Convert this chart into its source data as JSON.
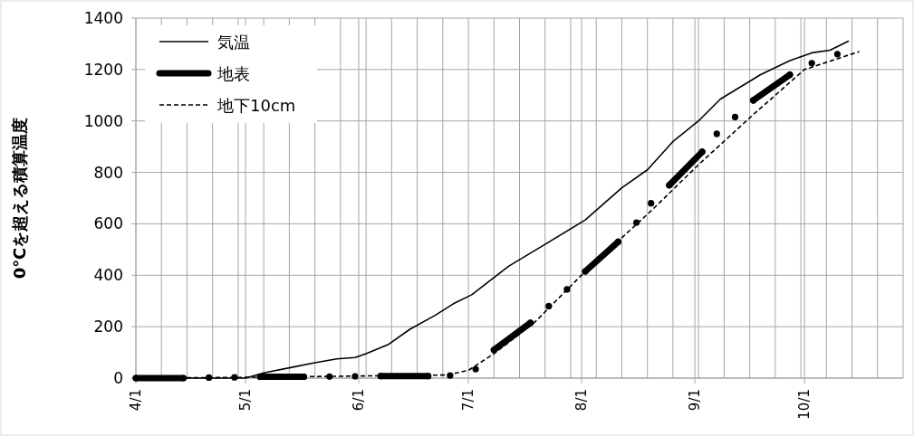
{
  "chart_data": {
    "type": "line",
    "ylabel": "0℃を超える積算温度",
    "xlim": [
      "--04-01",
      "--10-28"
    ],
    "xticks": [
      {
        "value": "--04-01",
        "label": "4/1"
      },
      {
        "value": "--04-08",
        "label": null
      },
      {
        "value": "--04-15",
        "label": null
      },
      {
        "value": "--04-22",
        "label": null
      },
      {
        "value": "--04-29",
        "label": null
      },
      {
        "value": "--05-01",
        "label": "5/1"
      },
      {
        "value": "--05-06",
        "label": null
      },
      {
        "value": "--05-13",
        "label": null
      },
      {
        "value": "--05-20",
        "label": null
      },
      {
        "value": "--05-27",
        "label": null
      },
      {
        "value": "--06-01",
        "label": "6/1"
      },
      {
        "value": "--06-03",
        "label": null
      },
      {
        "value": "--06-10",
        "label": null
      },
      {
        "value": "--06-17",
        "label": null
      },
      {
        "value": "--06-24",
        "label": null
      },
      {
        "value": "--07-01",
        "label": "7/1"
      },
      {
        "value": "--07-08",
        "label": null
      },
      {
        "value": "--07-15",
        "label": null
      },
      {
        "value": "--07-22",
        "label": null
      },
      {
        "value": "--07-29",
        "label": null
      },
      {
        "value": "--08-01",
        "label": "8/1"
      },
      {
        "value": "--08-05",
        "label": null
      },
      {
        "value": "--08-12",
        "label": null
      },
      {
        "value": "--08-19",
        "label": null
      },
      {
        "value": "--08-26",
        "label": null
      },
      {
        "value": "--09-01",
        "label": "9/1"
      },
      {
        "value": "--09-02",
        "label": null
      },
      {
        "value": "--09-09",
        "label": null
      },
      {
        "value": "--09-16",
        "label": null
      },
      {
        "value": "--09-23",
        "label": null
      },
      {
        "value": "--09-30",
        "label": null
      },
      {
        "value": "--10-01",
        "label": "10/1"
      },
      {
        "value": "--10-07",
        "label": null
      },
      {
        "value": "--10-14",
        "label": null
      },
      {
        "value": "--10-21",
        "label": null
      },
      {
        "value": "--10-28",
        "label": null
      }
    ],
    "ylim": [
      0,
      1400
    ],
    "yticks": [
      0,
      200,
      400,
      600,
      800,
      1000,
      1200,
      1400
    ],
    "grid": true,
    "legend": "top left",
    "series": [
      {
        "name": "気温",
        "color": "#000000",
        "line_style": "solid",
        "x": [
          "--04-01",
          "--05-01",
          "--05-06",
          "--05-13",
          "--05-20",
          "--05-26",
          "--05-31",
          "--06-03",
          "--06-09",
          "--06-15",
          "--06-22",
          "--06-27",
          "--07-02",
          "--07-12",
          "--07-22",
          "--08-02",
          "--08-12",
          "--08-19",
          "--08-26",
          "--09-02",
          "--09-08",
          "--09-19",
          "--09-27",
          "--10-03",
          "--10-08",
          "--10-13"
        ],
        "values": [
          0,
          0,
          20,
          40,
          60,
          75,
          80,
          95,
          130,
          190,
          245,
          290,
          325,
          435,
          520,
          615,
          740,
          810,
          920,
          1000,
          1085,
          1180,
          1235,
          1265,
          1275,
          1310
        ]
      },
      {
        "name": "地表",
        "color": "#000000",
        "line_style": "solid",
        "marker": "circle",
        "x": [
          "--04-01",
          "--04-14"
        ],
        "values": [
          0,
          0
        ]
      },
      {
        "name": "地下10cm",
        "color": "#000000",
        "line_style": "dashed",
        "x": [
          "--04-01",
          "--05-01",
          "--05-31",
          "--06-25",
          "--07-01",
          "--07-08",
          "--07-19",
          "--08-02",
          "--08-20",
          "--09-02",
          "--09-17",
          "--10-01",
          "--10-16"
        ],
        "values": [
          0,
          3,
          8,
          12,
          30,
          95,
          215,
          415,
          650,
          830,
          1025,
          1200,
          1270
        ]
      },
      {
        "color": "#000000",
        "line_style": "solid",
        "marker": "circle",
        "x": [
          "--05-05",
          "--05-17"
        ],
        "values": [
          5,
          5
        ]
      },
      {
        "color": "#000000",
        "line_style": "solid",
        "marker": "circle",
        "x": [
          "--06-07",
          "--06-20"
        ],
        "values": [
          8,
          8
        ]
      },
      {
        "color": "#000000",
        "line_style": "solid",
        "marker": "circle",
        "x": [
          "--07-08",
          "--07-18"
        ],
        "values": [
          110,
          215
        ]
      },
      {
        "color": "#000000",
        "line_style": "solid",
        "marker": "circle",
        "x": [
          "--08-02",
          "--08-11"
        ],
        "values": [
          415,
          530
        ]
      },
      {
        "color": "#000000",
        "line_style": "solid",
        "marker": "circle",
        "x": [
          "--08-25",
          "--09-03"
        ],
        "values": [
          750,
          880
        ]
      },
      {
        "color": "#000000",
        "line_style": "solid",
        "marker": "circle",
        "x": [
          "--09-17",
          "--09-27"
        ],
        "values": [
          1080,
          1180
        ]
      },
      {
        "type": "scatter",
        "color": "#000000",
        "marker": "circle",
        "x": [
          "--04-21",
          "--04-28",
          "--05-24",
          "--05-31",
          "--06-26",
          "--07-03",
          "--07-23",
          "--07-28",
          "--08-16",
          "--08-20",
          "--09-07",
          "--09-12",
          "--10-03",
          "--10-10"
        ],
        "values": [
          2,
          3,
          6,
          7,
          10,
          35,
          280,
          345,
          605,
          680,
          950,
          1015,
          1225,
          1260
        ]
      }
    ]
  }
}
